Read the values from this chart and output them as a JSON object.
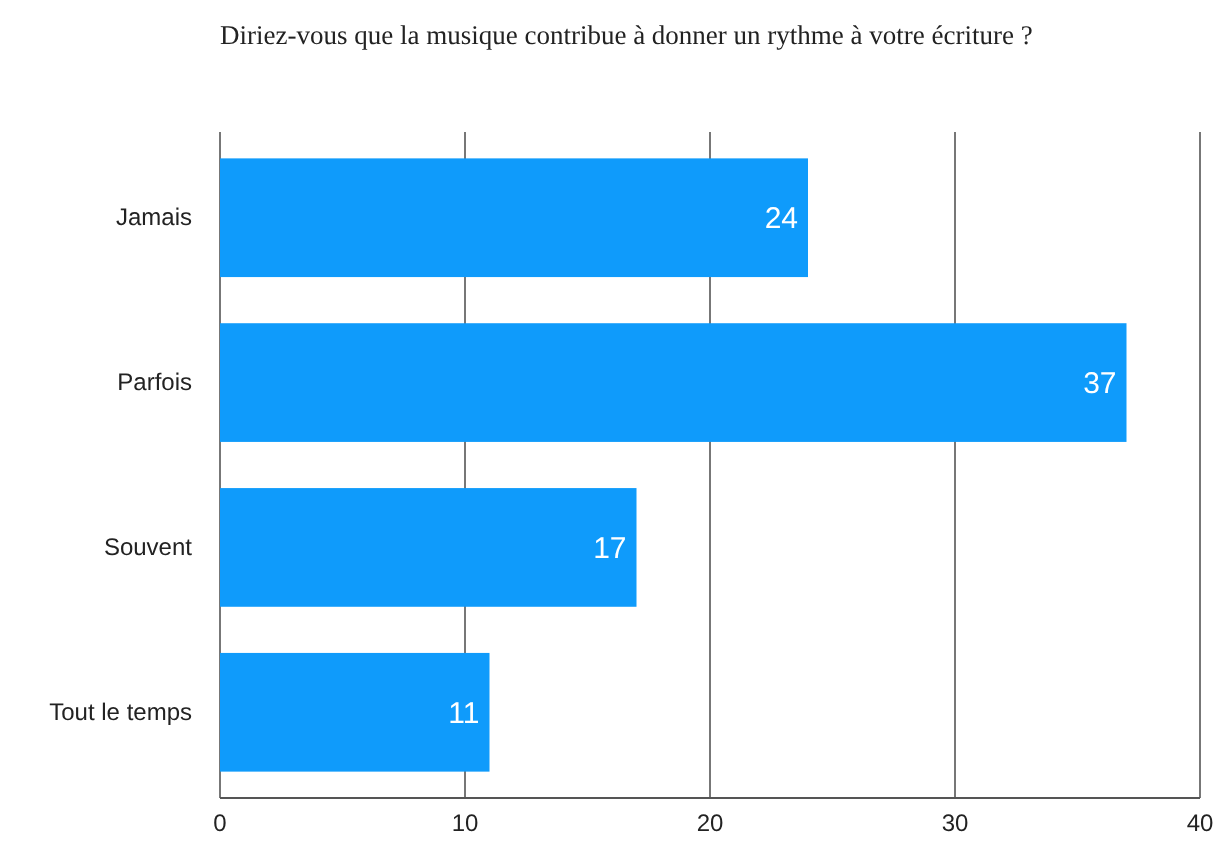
{
  "chart_data": {
    "type": "bar",
    "orientation": "horizontal",
    "title": "Diriez-vous que la musique contribue à donner un rythme à votre écriture ?",
    "categories": [
      "Jamais",
      "Parfois",
      "Souvent",
      "Tout le temps"
    ],
    "values": [
      24,
      37,
      17,
      11
    ],
    "color": "#0f9bfb",
    "xlim": [
      0,
      40
    ],
    "xticks": [
      0,
      10,
      20,
      30,
      40
    ],
    "grid": "x",
    "data_labels": true
  }
}
